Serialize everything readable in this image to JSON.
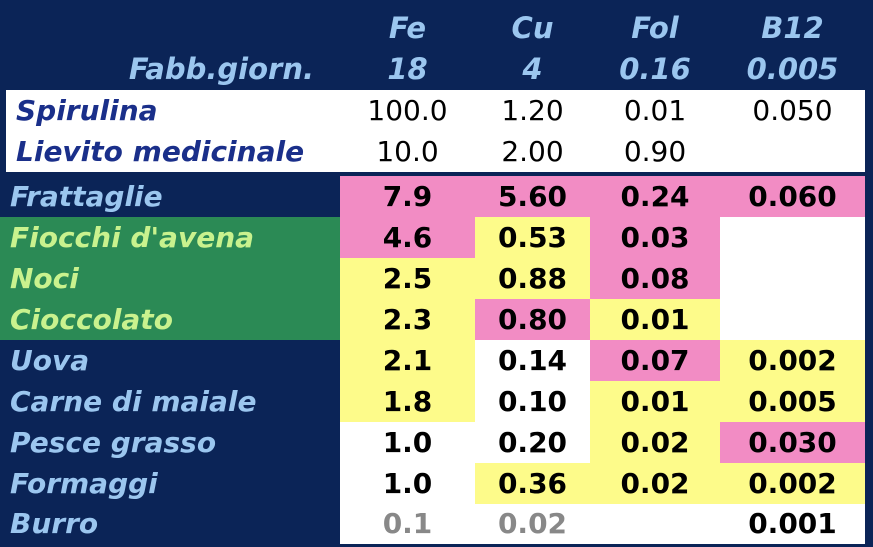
{
  "header": {
    "top": [
      "Fe",
      "Cu",
      "Fol",
      "B12"
    ],
    "label": "Fabb.giorn.",
    "values": [
      "18",
      "4",
      "0.16",
      "0.005"
    ]
  },
  "supplements": [
    {
      "name": "Spirulina",
      "values": [
        "100.0",
        "1.20",
        "0.01",
        "0.050"
      ]
    },
    {
      "name": "Lievito medicinale",
      "values": [
        "10.0",
        "2.00",
        "0.90",
        ""
      ]
    }
  ],
  "foods": [
    {
      "name": "Frattaglie",
      "values": [
        "7.9",
        "5.60",
        "0.24",
        "0.060"
      ]
    },
    {
      "name": "Fiocchi d'avena",
      "values": [
        "4.6",
        "0.53",
        "0.03",
        ""
      ]
    },
    {
      "name": "Noci",
      "values": [
        "2.5",
        "0.88",
        "0.08",
        ""
      ]
    },
    {
      "name": "Cioccolato",
      "values": [
        "2.3",
        "0.80",
        "0.01",
        ""
      ]
    },
    {
      "name": "Uova",
      "values": [
        "2.1",
        "0.14",
        "0.07",
        "0.002"
      ]
    },
    {
      "name": "Carne di maiale",
      "values": [
        "1.8",
        "0.10",
        "0.01",
        "0.005"
      ]
    },
    {
      "name": "Pesce grasso",
      "values": [
        "1.0",
        "0.20",
        "0.02",
        "0.030"
      ]
    },
    {
      "name": "Formaggi",
      "values": [
        "1.0",
        "0.36",
        "0.02",
        "0.002"
      ]
    },
    {
      "name": "Burro",
      "values": [
        "0.1",
        "0.02",
        "",
        "0.001"
      ]
    }
  ],
  "colors": {
    "background": "#0b2457",
    "header_text": "#9bc6ef",
    "label_green": "#2b8a55",
    "label_green_text": "#c9f28e",
    "pink": "#f28cc4",
    "yellow": "#fdfb8a",
    "white": "#ffffff",
    "grey_text": "#888888"
  }
}
